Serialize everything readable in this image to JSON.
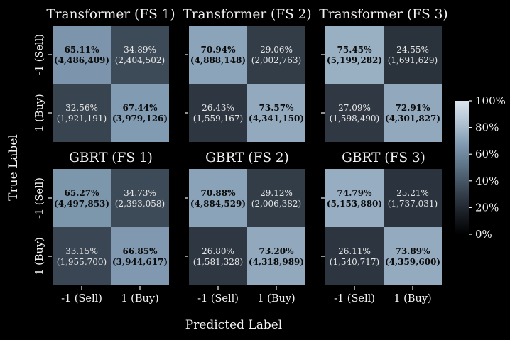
{
  "chart_data": {
    "type": "heatmap",
    "ylabel": "True Label",
    "xlabel": "Predicted Label",
    "x_categories": [
      "-1 (Sell)",
      "1 (Buy)"
    ],
    "y_categories": [
      "-1 (Sell)",
      "1 (Buy)"
    ],
    "colorbar": {
      "range": [
        0,
        100
      ],
      "ticks": [
        "0%",
        "20%",
        "40%",
        "60%",
        "80%",
        "100%"
      ],
      "tick_values": [
        0,
        20,
        40,
        60,
        80,
        100
      ],
      "colormap": [
        "#000000",
        "#1c2128",
        "#3a4653",
        "#5a7083",
        "#7f99b0",
        "#b0c2d2",
        "#dce5ed"
      ]
    },
    "panels": [
      {
        "title": "Transformer (FS 1)",
        "percent": [
          [
            65.11,
            34.89
          ],
          [
            32.56,
            67.44
          ]
        ],
        "cells": [
          [
            {
              "pct": "65.11%",
              "count": "(4,486,409)"
            },
            {
              "pct": "34.89%",
              "count": "(2,404,502)"
            }
          ],
          [
            {
              "pct": "32.56%",
              "count": "(1,921,191)"
            },
            {
              "pct": "67.44%",
              "count": "(3,979,126)"
            }
          ]
        ]
      },
      {
        "title": "Transformer (FS 2)",
        "percent": [
          [
            70.94,
            29.06
          ],
          [
            26.43,
            73.57
          ]
        ],
        "cells": [
          [
            {
              "pct": "70.94%",
              "count": "(4,888,148)"
            },
            {
              "pct": "29.06%",
              "count": "(2,002,763)"
            }
          ],
          [
            {
              "pct": "26.43%",
              "count": "(1,559,167)"
            },
            {
              "pct": "73.57%",
              "count": "(4,341,150)"
            }
          ]
        ]
      },
      {
        "title": "Transformer (FS 3)",
        "percent": [
          [
            75.45,
            24.55
          ],
          [
            27.09,
            72.91
          ]
        ],
        "cells": [
          [
            {
              "pct": "75.45%",
              "count": "(5,199,282)"
            },
            {
              "pct": "24.55%",
              "count": "(1,691,629)"
            }
          ],
          [
            {
              "pct": "27.09%",
              "count": "(1,598,490)"
            },
            {
              "pct": "72.91%",
              "count": "(4,301,827)"
            }
          ]
        ]
      },
      {
        "title": "GBRT (FS 1)",
        "percent": [
          [
            65.27,
            34.73
          ],
          [
            33.15,
            66.85
          ]
        ],
        "cells": [
          [
            {
              "pct": "65.27%",
              "count": "(4,497,853)"
            },
            {
              "pct": "34.73%",
              "count": "(2,393,058)"
            }
          ],
          [
            {
              "pct": "33.15%",
              "count": "(1,955,700)"
            },
            {
              "pct": "66.85%",
              "count": "(3,944,617)"
            }
          ]
        ]
      },
      {
        "title": "GBRT (FS 2)",
        "percent": [
          [
            70.88,
            29.12
          ],
          [
            26.8,
            73.2
          ]
        ],
        "cells": [
          [
            {
              "pct": "70.88%",
              "count": "(4,884,529)"
            },
            {
              "pct": "29.12%",
              "count": "(2,006,382)"
            }
          ],
          [
            {
              "pct": "26.80%",
              "count": "(1,581,328)"
            },
            {
              "pct": "73.20%",
              "count": "(4,318,989)"
            }
          ]
        ]
      },
      {
        "title": "GBRT (FS 3)",
        "percent": [
          [
            74.79,
            25.21
          ],
          [
            26.11,
            73.89
          ]
        ],
        "cells": [
          [
            {
              "pct": "74.79%",
              "count": "(5,153,880)"
            },
            {
              "pct": "25.21%",
              "count": "(1,737,031)"
            }
          ],
          [
            {
              "pct": "26.11%",
              "count": "(1,540,717)"
            },
            {
              "pct": "73.89%",
              "count": "(4,359,600)"
            }
          ]
        ]
      }
    ]
  }
}
